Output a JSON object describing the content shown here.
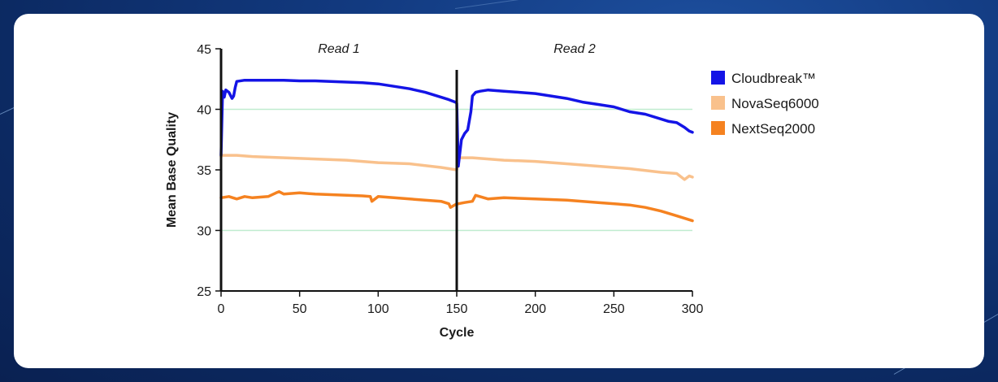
{
  "chart_data": {
    "type": "line",
    "xlabel": "Cycle",
    "ylabel": "Mean Base Quality",
    "xlim": [
      0,
      300
    ],
    "ylim": [
      25,
      45
    ],
    "xticks": [
      "0",
      "50",
      "100",
      "150",
      "200",
      "250",
      "300"
    ],
    "yticks": [
      "25",
      "30",
      "35",
      "40",
      "45"
    ],
    "gridlines_y": [
      30,
      40
    ],
    "divider_x": 150,
    "read_labels": [
      "Read 1",
      "Read 2"
    ],
    "legend_position": "right",
    "series": [
      {
        "name": "Cloudbreak™",
        "color": "#1414e6",
        "x": [
          0,
          1,
          2,
          3,
          5,
          7,
          8,
          9,
          10,
          15,
          20,
          30,
          40,
          50,
          60,
          70,
          80,
          90,
          100,
          110,
          120,
          130,
          140,
          145,
          149,
          150,
          151,
          153,
          155,
          157,
          159,
          160,
          162,
          165,
          170,
          180,
          190,
          200,
          210,
          220,
          230,
          240,
          250,
          260,
          270,
          280,
          285,
          290,
          295,
          298,
          300
        ],
        "y": [
          36.2,
          41.5,
          41.0,
          41.6,
          41.4,
          40.9,
          41.1,
          41.8,
          42.3,
          42.4,
          42.4,
          42.4,
          42.4,
          42.35,
          42.35,
          42.3,
          42.25,
          42.2,
          42.1,
          41.9,
          41.7,
          41.4,
          41.0,
          40.8,
          40.6,
          40.5,
          35.3,
          37.5,
          38.0,
          38.3,
          39.8,
          41.1,
          41.4,
          41.5,
          41.6,
          41.5,
          41.4,
          41.3,
          41.1,
          40.9,
          40.6,
          40.4,
          40.2,
          39.8,
          39.6,
          39.2,
          39.0,
          38.9,
          38.5,
          38.2,
          38.1
        ]
      },
      {
        "name": "NovaSeq6000",
        "color": "#f9c18c",
        "x": [
          0,
          1,
          5,
          10,
          20,
          40,
          60,
          80,
          100,
          120,
          140,
          150,
          151,
          152,
          160,
          170,
          180,
          200,
          220,
          240,
          260,
          280,
          290,
          295,
          298,
          300
        ],
        "y": [
          36.1,
          36.2,
          36.2,
          36.2,
          36.1,
          36.0,
          35.9,
          35.8,
          35.6,
          35.5,
          35.2,
          35.0,
          35.9,
          36.0,
          36.0,
          35.9,
          35.8,
          35.7,
          35.5,
          35.3,
          35.1,
          34.8,
          34.7,
          34.2,
          34.5,
          34.4
        ]
      },
      {
        "name": "NextSeq2000",
        "color": "#f58220",
        "x": [
          0,
          5,
          10,
          15,
          20,
          30,
          35,
          37,
          40,
          50,
          60,
          80,
          90,
          95,
          96,
          100,
          120,
          140,
          145,
          146,
          150,
          151,
          155,
          160,
          162,
          170,
          180,
          200,
          220,
          240,
          260,
          270,
          280,
          290,
          300
        ],
        "y": [
          32.7,
          32.8,
          32.6,
          32.8,
          32.7,
          32.8,
          33.1,
          33.2,
          33.0,
          33.1,
          33.0,
          32.9,
          32.85,
          32.8,
          32.4,
          32.8,
          32.6,
          32.4,
          32.2,
          31.9,
          32.2,
          32.2,
          32.3,
          32.4,
          32.9,
          32.6,
          32.7,
          32.6,
          32.5,
          32.3,
          32.1,
          31.9,
          31.6,
          31.2,
          30.8
        ]
      }
    ]
  }
}
